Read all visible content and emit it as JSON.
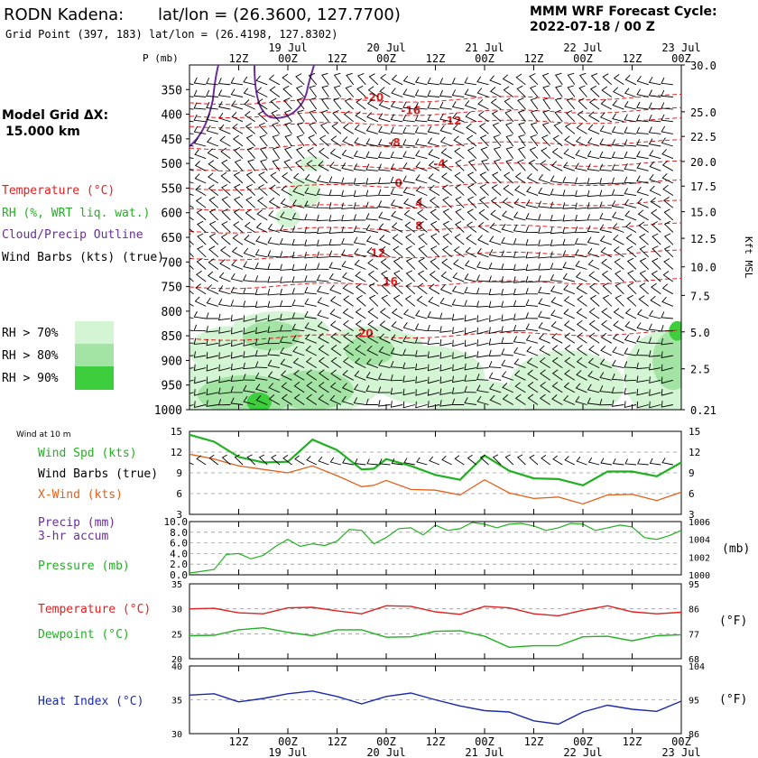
{
  "header": {
    "station": "RODN Kadena:",
    "latlon": "lat/lon = (26.3600, 127.7700)",
    "gridpoint": "Grid Point (397, 183) lat/lon = (26.4198, 127.8302)",
    "cycle_title": "MMM WRF Forecast Cycle:",
    "cycle_value": "2022-07-18 / 00  Z"
  },
  "side": {
    "grid_title": "Model Grid ΔX:",
    "grid_value": "15.000 km",
    "legend": [
      {
        "text": "Temperature (°C)",
        "color": "#e02020"
      },
      {
        "text": "RH (%, WRT liq. wat.)",
        "color": "#22b022"
      },
      {
        "text": "Cloud/Precip Outline",
        "color": "#6a2d9a"
      },
      {
        "text": "Wind Barbs (kts) (true)",
        "color": "#000000"
      }
    ],
    "rh_key": [
      {
        "text": "RH > 70%",
        "color": "#d4f5d4"
      },
      {
        "text": "RH > 80%",
        "color": "#a3e3a3"
      },
      {
        "text": "RH > 90%",
        "color": "#3cce3c"
      }
    ],
    "wind10_title": "Wind at 10 m",
    "wind10_labels": [
      {
        "text": "Wind Spd (kts)",
        "color": "#22b022"
      },
      {
        "text": "Wind Barbs (true)",
        "color": "#000000"
      },
      {
        "text": "X-Wind (kts)",
        "color": "#e0601a"
      }
    ],
    "precip_labels": [
      {
        "text": "Precip (mm)",
        "color": "#6a2d9a"
      },
      {
        "text": "3-hr accum",
        "color": "#6a2d9a"
      },
      {
        "text": "Pressure (mb)",
        "color": "#22b022"
      }
    ],
    "temp_labels": [
      {
        "text": "Temperature (°C)",
        "color": "#e02020"
      },
      {
        "text": "Dewpoint (°C)",
        "color": "#22b022"
      }
    ],
    "heat_label": {
      "text": "Heat Index (°C)",
      "color": "#1a2aaa"
    }
  },
  "time_axis": {
    "hour_ticks": [
      "12Z",
      "00Z",
      "12Z",
      "00Z",
      "12Z",
      "00Z",
      "12Z",
      "00Z",
      "12Z",
      "00Z"
    ],
    "tick_hours": [
      12,
      24,
      36,
      48,
      60,
      72,
      84,
      96,
      108,
      120
    ],
    "day_labels": [
      "19 Jul",
      "20 Jul",
      "21 Jul",
      "22 Jul",
      "23 Jul"
    ],
    "day_hours": [
      24,
      48,
      72,
      96,
      120
    ],
    "range_hours": [
      0,
      120
    ]
  },
  "chart_data": [
    {
      "type": "heatmap",
      "name": "Vertical cross-section",
      "ylabel": "P (mb)",
      "ylabel_right": "Kft MSL",
      "pressure_levels": [
        350,
        400,
        450,
        500,
        550,
        600,
        650,
        700,
        750,
        800,
        850,
        900,
        950,
        1000
      ],
      "height_kft_labels": [
        "30.0",
        "25.0",
        "22.5",
        "20.0",
        "17.5",
        "15.0",
        "12.5",
        "10.0",
        "7.5",
        "5.0",
        "2.5",
        "0.21"
      ],
      "height_kft_levels": [
        300,
        395,
        445,
        496,
        546,
        598,
        652,
        710,
        768,
        842,
        917,
        1000
      ],
      "temperature_contours": [
        {
          "label": "-20",
          "hour": 45,
          "p": 364
        },
        {
          "label": "-16",
          "hour": 54,
          "p": 391
        },
        {
          "label": "-12",
          "hour": 64,
          "p": 412
        },
        {
          "label": "-8",
          "hour": 50,
          "p": 456
        },
        {
          "label": "-4",
          "hour": 61,
          "p": 499
        },
        {
          "label": "0",
          "hour": 51,
          "p": 538
        },
        {
          "label": "4",
          "hour": 56,
          "p": 579
        },
        {
          "label": "8",
          "hour": 56,
          "p": 625
        },
        {
          "label": "12",
          "hour": 46,
          "p": 680
        },
        {
          "label": "16",
          "hour": 49,
          "p": 738
        },
        {
          "label": "20",
          "hour": 43,
          "p": 843
        }
      ],
      "rh_thresholds": [
        "RH > 70%",
        "RH > 80%",
        "RH > 90%"
      ]
    },
    {
      "type": "line",
      "name": "Wind at 10 m",
      "ylim": [
        3,
        15
      ],
      "yticks": [
        3,
        6,
        9,
        12,
        15
      ],
      "x": [
        0,
        6,
        12,
        18,
        24,
        30,
        36,
        42,
        45,
        48,
        54,
        60,
        66,
        72,
        78,
        84,
        90,
        96,
        102,
        108,
        114,
        120
      ],
      "series": [
        {
          "name": "Wind Spd (kts)",
          "color": "#22b022",
          "values": [
            14.5,
            13.5,
            11.3,
            10.5,
            10.6,
            13.8,
            12.3,
            9.5,
            9.6,
            11.0,
            10.0,
            8.7,
            8.0,
            11.5,
            9.3,
            8.2,
            8.1,
            7.2,
            9.2,
            9.2,
            8.5,
            10.5
          ]
        },
        {
          "name": "X-Wind (kts)",
          "color": "#e0601a",
          "values": [
            11.7,
            11.0,
            10.0,
            9.5,
            9.0,
            10.0,
            8.6,
            7.0,
            7.2,
            7.9,
            6.6,
            6.5,
            5.8,
            8.0,
            6.1,
            5.3,
            5.5,
            4.5,
            5.8,
            5.9,
            5.0,
            6.2
          ]
        }
      ]
    },
    {
      "type": "line",
      "name": "Precip and Pressure",
      "ylim_precip": [
        0,
        10
      ],
      "yticks_precip": [
        "0.0",
        "2.0",
        "4.0",
        "6.0",
        "8.0",
        "10.0"
      ],
      "ylim_pressure": [
        1000,
        1006
      ],
      "yticks_pressure": [
        "1000",
        "1002",
        "1004",
        "1006"
      ],
      "y_right_label": "(mb)",
      "x": [
        0,
        3,
        6,
        9,
        12,
        15,
        18,
        21,
        24,
        27,
        30,
        33,
        36,
        39,
        42,
        45,
        48,
        51,
        54,
        57,
        60,
        63,
        66,
        69,
        72,
        75,
        78,
        81,
        84,
        87,
        90,
        93,
        96,
        99,
        102,
        105,
        108,
        111,
        114,
        117,
        120
      ],
      "series": [
        {
          "name": "Pressure (mb)",
          "color": "#22b022",
          "values": [
            1000.2,
            1000.4,
            1000.6,
            1002.3,
            1002.4,
            1001.8,
            1002.2,
            1003.2,
            1004.0,
            1003.2,
            1003.5,
            1003.3,
            1003.8,
            1005.1,
            1005.0,
            1003.5,
            1004.2,
            1005.2,
            1005.3,
            1004.5,
            1005.6,
            1005.0,
            1005.2,
            1005.9,
            1005.7,
            1005.3,
            1005.7,
            1005.8,
            1005.5,
            1005.0,
            1005.3,
            1005.8,
            1005.7,
            1005.0,
            1005.3,
            1005.6,
            1005.4,
            1004.2,
            1004.0,
            1004.4,
            1005.0
          ]
        }
      ]
    },
    {
      "type": "line",
      "name": "Temperature and Dewpoint",
      "ylim": [
        20,
        35
      ],
      "yticks": [
        20,
        25,
        30,
        35
      ],
      "yticks_right": [
        "68",
        "77",
        "86",
        "95"
      ],
      "y_right_label": "(°F)",
      "x": [
        0,
        6,
        12,
        18,
        24,
        30,
        36,
        42,
        48,
        54,
        60,
        66,
        72,
        78,
        84,
        90,
        96,
        102,
        108,
        114,
        120
      ],
      "series": [
        {
          "name": "Temperature (°C)",
          "color": "#e02020",
          "values": [
            30.0,
            30.1,
            29.2,
            29.0,
            30.2,
            30.3,
            29.6,
            29.0,
            30.6,
            30.5,
            29.4,
            28.9,
            30.5,
            30.2,
            29.0,
            28.6,
            29.7,
            30.6,
            29.4,
            29.0,
            29.3
          ]
        },
        {
          "name": "Dewpoint (°C)",
          "color": "#22b022",
          "values": [
            24.6,
            24.7,
            25.8,
            26.2,
            25.3,
            24.6,
            25.8,
            25.8,
            24.3,
            24.4,
            25.5,
            25.6,
            24.5,
            22.3,
            22.6,
            22.6,
            24.4,
            24.5,
            23.6,
            24.6,
            24.8
          ]
        }
      ]
    },
    {
      "type": "line",
      "name": "Heat Index",
      "ylim": [
        30,
        40
      ],
      "yticks": [
        30,
        35,
        40
      ],
      "yticks_right": [
        "86",
        "95",
        "104"
      ],
      "y_right_label": "(°F)",
      "x": [
        0,
        6,
        12,
        18,
        24,
        30,
        36,
        42,
        48,
        54,
        60,
        66,
        72,
        78,
        84,
        90,
        96,
        102,
        108,
        114,
        120
      ],
      "series": [
        {
          "name": "Heat Index (°C)",
          "color": "#1a2aaa",
          "values": [
            35.7,
            35.9,
            34.7,
            35.2,
            35.9,
            36.3,
            35.5,
            34.4,
            35.5,
            36.0,
            35.0,
            34.1,
            33.4,
            33.2,
            31.9,
            31.4,
            33.2,
            34.2,
            33.6,
            33.3,
            34.8
          ]
        }
      ]
    }
  ]
}
